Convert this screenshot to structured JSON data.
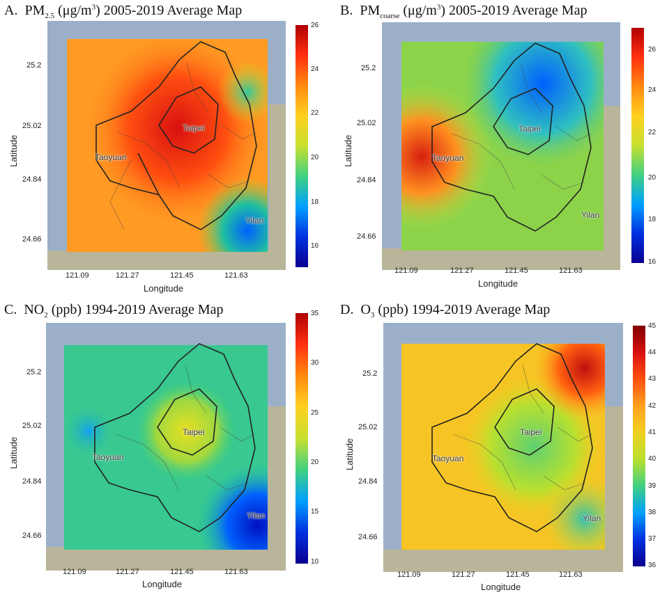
{
  "panels": [
    {
      "letter": "A.",
      "title_main": "PM",
      "title_sub": "2.5",
      "title_rest": " (μg/m",
      "title_sup": "3",
      "title_end": ") 2005-2019 Average Map",
      "cbar_ticks": [
        "26",
        "24",
        "22",
        "20",
        "18",
        "16"
      ],
      "xticks": [
        "121.09",
        "121.27",
        "121.45",
        "121.63"
      ],
      "yticks": [
        "25.2",
        "25.02",
        "24.84",
        "24.66"
      ],
      "xlabel": "Longitude",
      "ylabel": "Latitude",
      "cities": [
        "Taipei",
        "Taoyuan",
        "Yilan"
      ]
    },
    {
      "letter": "B.",
      "title_main": "PM",
      "title_sub": "coarse",
      "title_rest": " (μg/m",
      "title_sup": "3",
      "title_end": ") 2005-2019 Average Map",
      "cbar_ticks": [
        "26",
        "24",
        "22",
        "20",
        "18",
        "16"
      ],
      "xticks": [
        "121.09",
        "121.27",
        "121.45",
        "121.63"
      ],
      "yticks": [
        "25.2",
        "25.02",
        "24.84",
        "24.66"
      ],
      "xlabel": "Longitude",
      "ylabel": "Latitude",
      "cities": [
        "Taipei",
        "Taoyuan",
        "Yilan"
      ]
    },
    {
      "letter": "C.",
      "title_main": "NO",
      "title_sub": "2",
      "title_rest": " (ppb) 1994-2019 Average Map",
      "title_sup": "",
      "title_end": "",
      "cbar_ticks": [
        "35",
        "30",
        "25",
        "20",
        "15",
        "10"
      ],
      "xticks": [
        "121.09",
        "121.27",
        "121.45",
        "121.63"
      ],
      "yticks": [
        "25.2",
        "25.02",
        "24.84",
        "24.66"
      ],
      "xlabel": "Longitude",
      "ylabel": "Latitude",
      "cities": [
        "Taipei",
        "Taoyuan",
        "Yilan"
      ]
    },
    {
      "letter": "D.",
      "title_main": "O",
      "title_sub": "3",
      "title_rest": " (ppb) 1994-2019 Average Map",
      "title_sup": "",
      "title_end": "",
      "cbar_ticks": [
        "45",
        "44",
        "43",
        "42",
        "41",
        "40",
        "39",
        "38",
        "37",
        "36"
      ],
      "xticks": [
        "121.09",
        "121.27",
        "121.45",
        "121.63"
      ],
      "yticks": [
        "25.2",
        "25.02",
        "24.84",
        "24.66"
      ],
      "xlabel": "Longitude",
      "ylabel": "Latitude",
      "cities": [
        "Taipei",
        "Taoyuan",
        "Yilan"
      ]
    }
  ],
  "colors": {
    "sea": "#9bb0c8",
    "land": "#b9b59a",
    "colormap": [
      "#08008a",
      "#0030ff",
      "#00a0ff",
      "#20d0a0",
      "#7ed048",
      "#e8e020",
      "#ffb020",
      "#ff6010",
      "#d81010",
      "#800000"
    ]
  }
}
